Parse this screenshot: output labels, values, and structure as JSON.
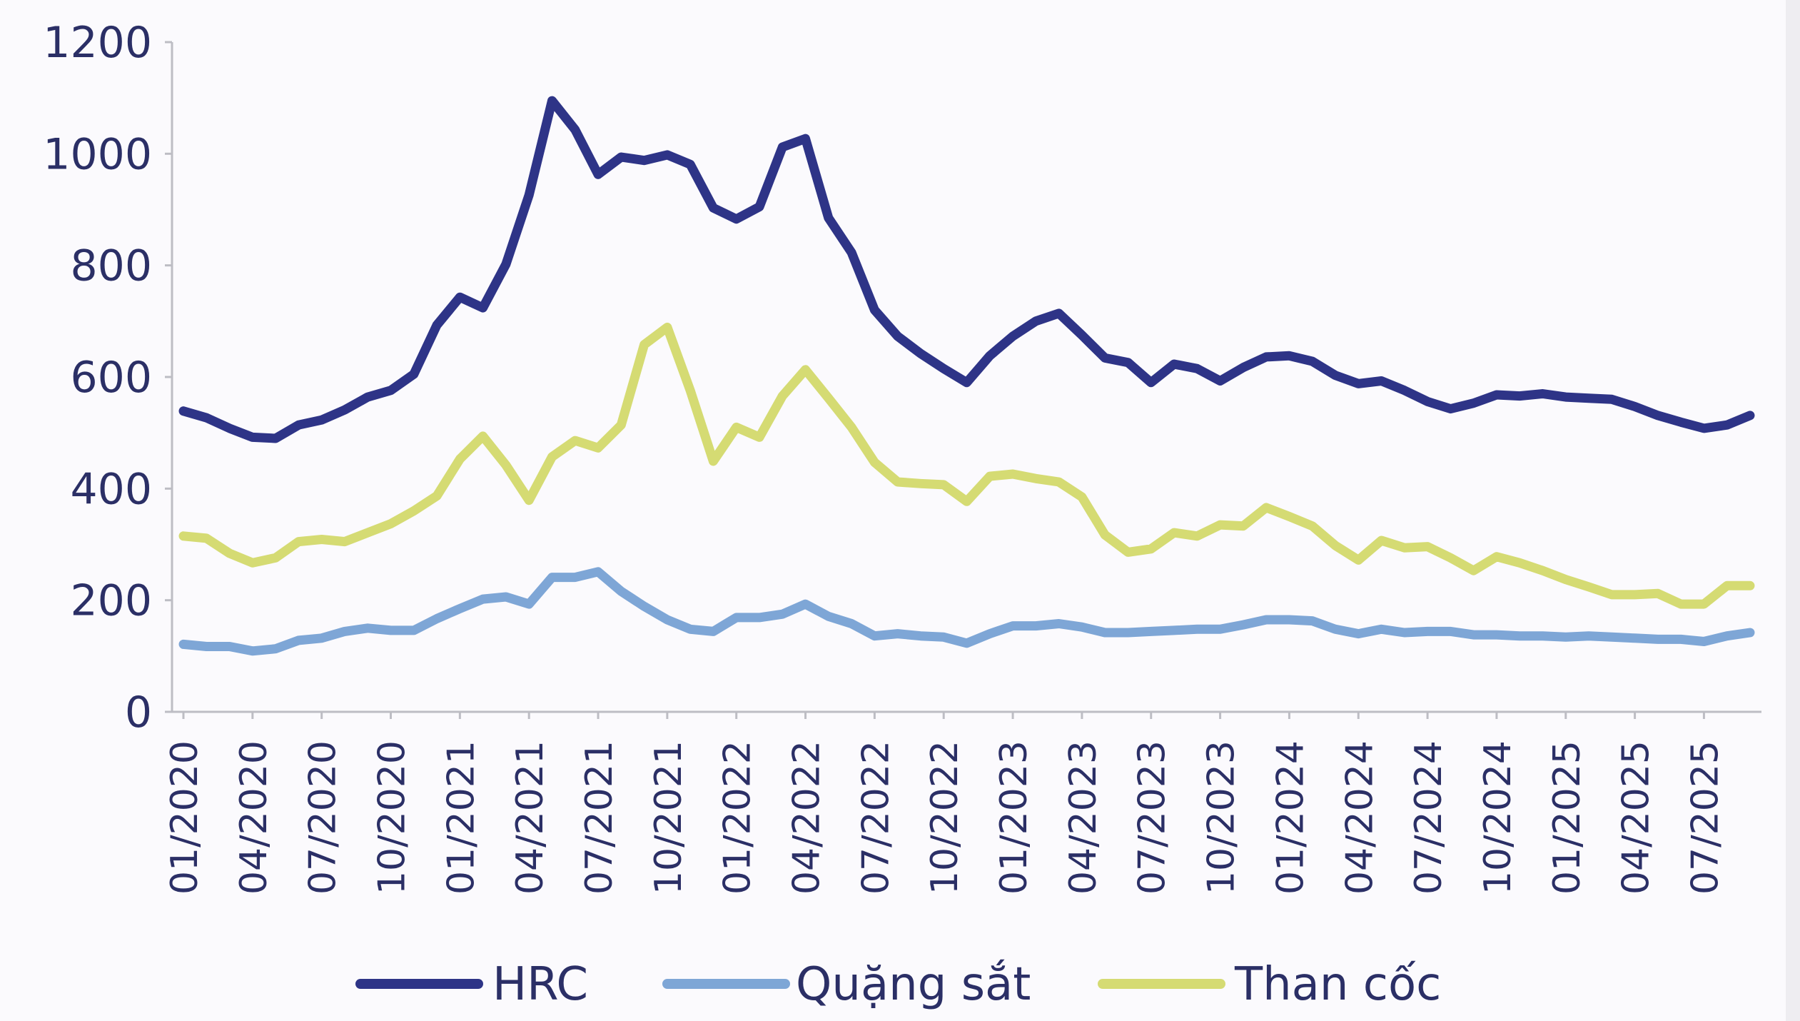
{
  "chart_data": {
    "type": "line",
    "title": "",
    "xlabel": "",
    "ylabel": "",
    "ylim": [
      0,
      1200
    ],
    "yticks": [
      "0",
      "200",
      "400",
      "600",
      "800",
      "1000",
      "1200"
    ],
    "xtick_labels": [
      "01/2020",
      "04/2020",
      "07/2020",
      "10/2020",
      "01/2021",
      "04/2021",
      "07/2021",
      "10/2021",
      "01/2022",
      "04/2022",
      "07/2022",
      "10/2022",
      "01/2023",
      "04/2023",
      "07/2023",
      "10/2023",
      "01/2024",
      "04/2024",
      "07/2024",
      "10/2024",
      "01/2025",
      "04/2025",
      "07/2025"
    ],
    "x_start": "01/2020",
    "x_end": "09/2025",
    "x_step": "monthly",
    "grid": false,
    "legend_position": "bottom",
    "series": [
      {
        "name": "HRC",
        "color": "#2e3487",
        "values": [
          539,
          527,
          508,
          492,
          490,
          514,
          523,
          541,
          564,
          576,
          605,
          693,
          743,
          724,
          802,
          926,
          1095,
          1043,
          963,
          994,
          988,
          998,
          981,
          903,
          883,
          905,
          1012,
          1027,
          885,
          823,
          720,
          673,
          642,
          615,
          590,
          638,
          673,
          700,
          714,
          675,
          634,
          626,
          590,
          623,
          615,
          593,
          617,
          636,
          638,
          628,
          603,
          588,
          593,
          576,
          556,
          543,
          553,
          568,
          566,
          570,
          564,
          562,
          560,
          547,
          531,
          519,
          508,
          514,
          531
        ]
      },
      {
        "name": "Quặng sắt",
        "color": "#7ea6d6",
        "values": [
          121,
          117,
          117,
          109,
          113,
          128,
          132,
          144,
          150,
          146,
          146,
          167,
          185,
          202,
          206,
          193,
          241,
          241,
          251,
          216,
          189,
          165,
          148,
          144,
          169,
          169,
          175,
          193,
          171,
          158,
          136,
          140,
          136,
          134,
          123,
          140,
          154,
          154,
          158,
          152,
          142,
          142,
          144,
          146,
          148,
          148,
          156,
          165,
          165,
          163,
          148,
          140,
          148,
          142,
          144,
          144,
          138,
          138,
          136,
          136,
          134,
          136,
          134,
          132,
          130,
          130,
          126,
          136,
          142
        ]
      },
      {
        "name": "Than cốc",
        "color": "#d5db73",
        "values": [
          315,
          311,
          284,
          267,
          276,
          305,
          309,
          305,
          321,
          337,
          360,
          387,
          453,
          494,
          442,
          379,
          457,
          486,
          473,
          514,
          658,
          689,
          576,
          449,
          510,
          492,
          566,
          613,
          562,
          510,
          447,
          412,
          409,
          407,
          377,
          422,
          426,
          418,
          412,
          385,
          317,
          286,
          292,
          321,
          315,
          335,
          333,
          366,
          350,
          333,
          298,
          272,
          307,
          294,
          296,
          276,
          253,
          278,
          267,
          253,
          237,
          224,
          210,
          210,
          212,
          193,
          193,
          226,
          226
        ]
      }
    ]
  }
}
